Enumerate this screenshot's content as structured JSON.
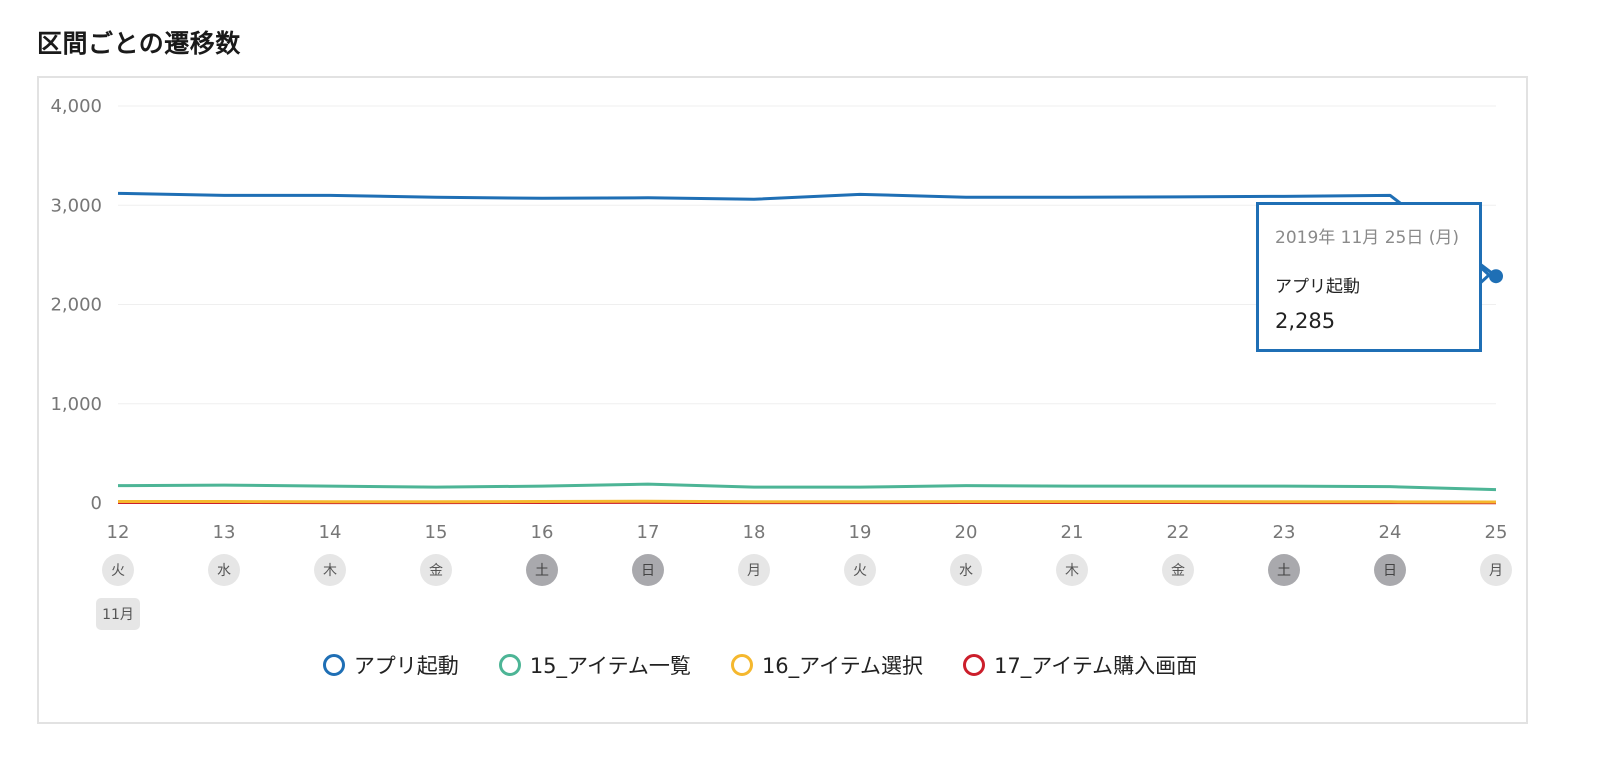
{
  "page": {
    "title": "区間ごとの遷移数"
  },
  "chart_data": {
    "type": "line",
    "title": "",
    "xlabel": "",
    "ylabel": "",
    "ylim": [
      0,
      4000
    ],
    "yticks": [
      0,
      1000,
      2000,
      3000,
      4000
    ],
    "ytick_labels": [
      "0",
      "1,000",
      "2,000",
      "3,000",
      "4,000"
    ],
    "grid": true,
    "legend_position": "bottom-center",
    "month_label": "11月",
    "x": [
      "12",
      "13",
      "14",
      "15",
      "16",
      "17",
      "18",
      "19",
      "20",
      "21",
      "22",
      "23",
      "24",
      "25"
    ],
    "weekdays": [
      "火",
      "水",
      "木",
      "金",
      "土",
      "日",
      "月",
      "火",
      "水",
      "木",
      "金",
      "土",
      "日",
      "月"
    ],
    "weekend_flags": [
      false,
      false,
      false,
      false,
      true,
      true,
      false,
      false,
      false,
      false,
      false,
      true,
      true,
      false
    ],
    "series": [
      {
        "name": "アプリ起動",
        "color": "#1f6fb5",
        "values": [
          3120,
          3100,
          3100,
          3080,
          3070,
          3075,
          3060,
          3110,
          3080,
          3080,
          3085,
          3090,
          3100,
          2285
        ]
      },
      {
        "name": "15_アイテム一覧",
        "color": "#4db596",
        "values": [
          175,
          180,
          170,
          160,
          170,
          190,
          160,
          160,
          175,
          170,
          170,
          170,
          165,
          135
        ]
      },
      {
        "name": "16_アイテム選択",
        "color": "#f5b82e",
        "values": [
          15,
          15,
          12,
          12,
          15,
          18,
          12,
          12,
          14,
          14,
          14,
          12,
          12,
          10
        ]
      },
      {
        "name": "17_アイテム購入画面",
        "color": "#cc1e2b",
        "values": [
          5,
          5,
          4,
          4,
          5,
          6,
          4,
          4,
          5,
          5,
          5,
          4,
          4,
          3
        ]
      }
    ],
    "tooltip": {
      "date": "2019年 11月 25日 (月)",
      "series": "アプリ起動",
      "value": "2,285"
    }
  }
}
